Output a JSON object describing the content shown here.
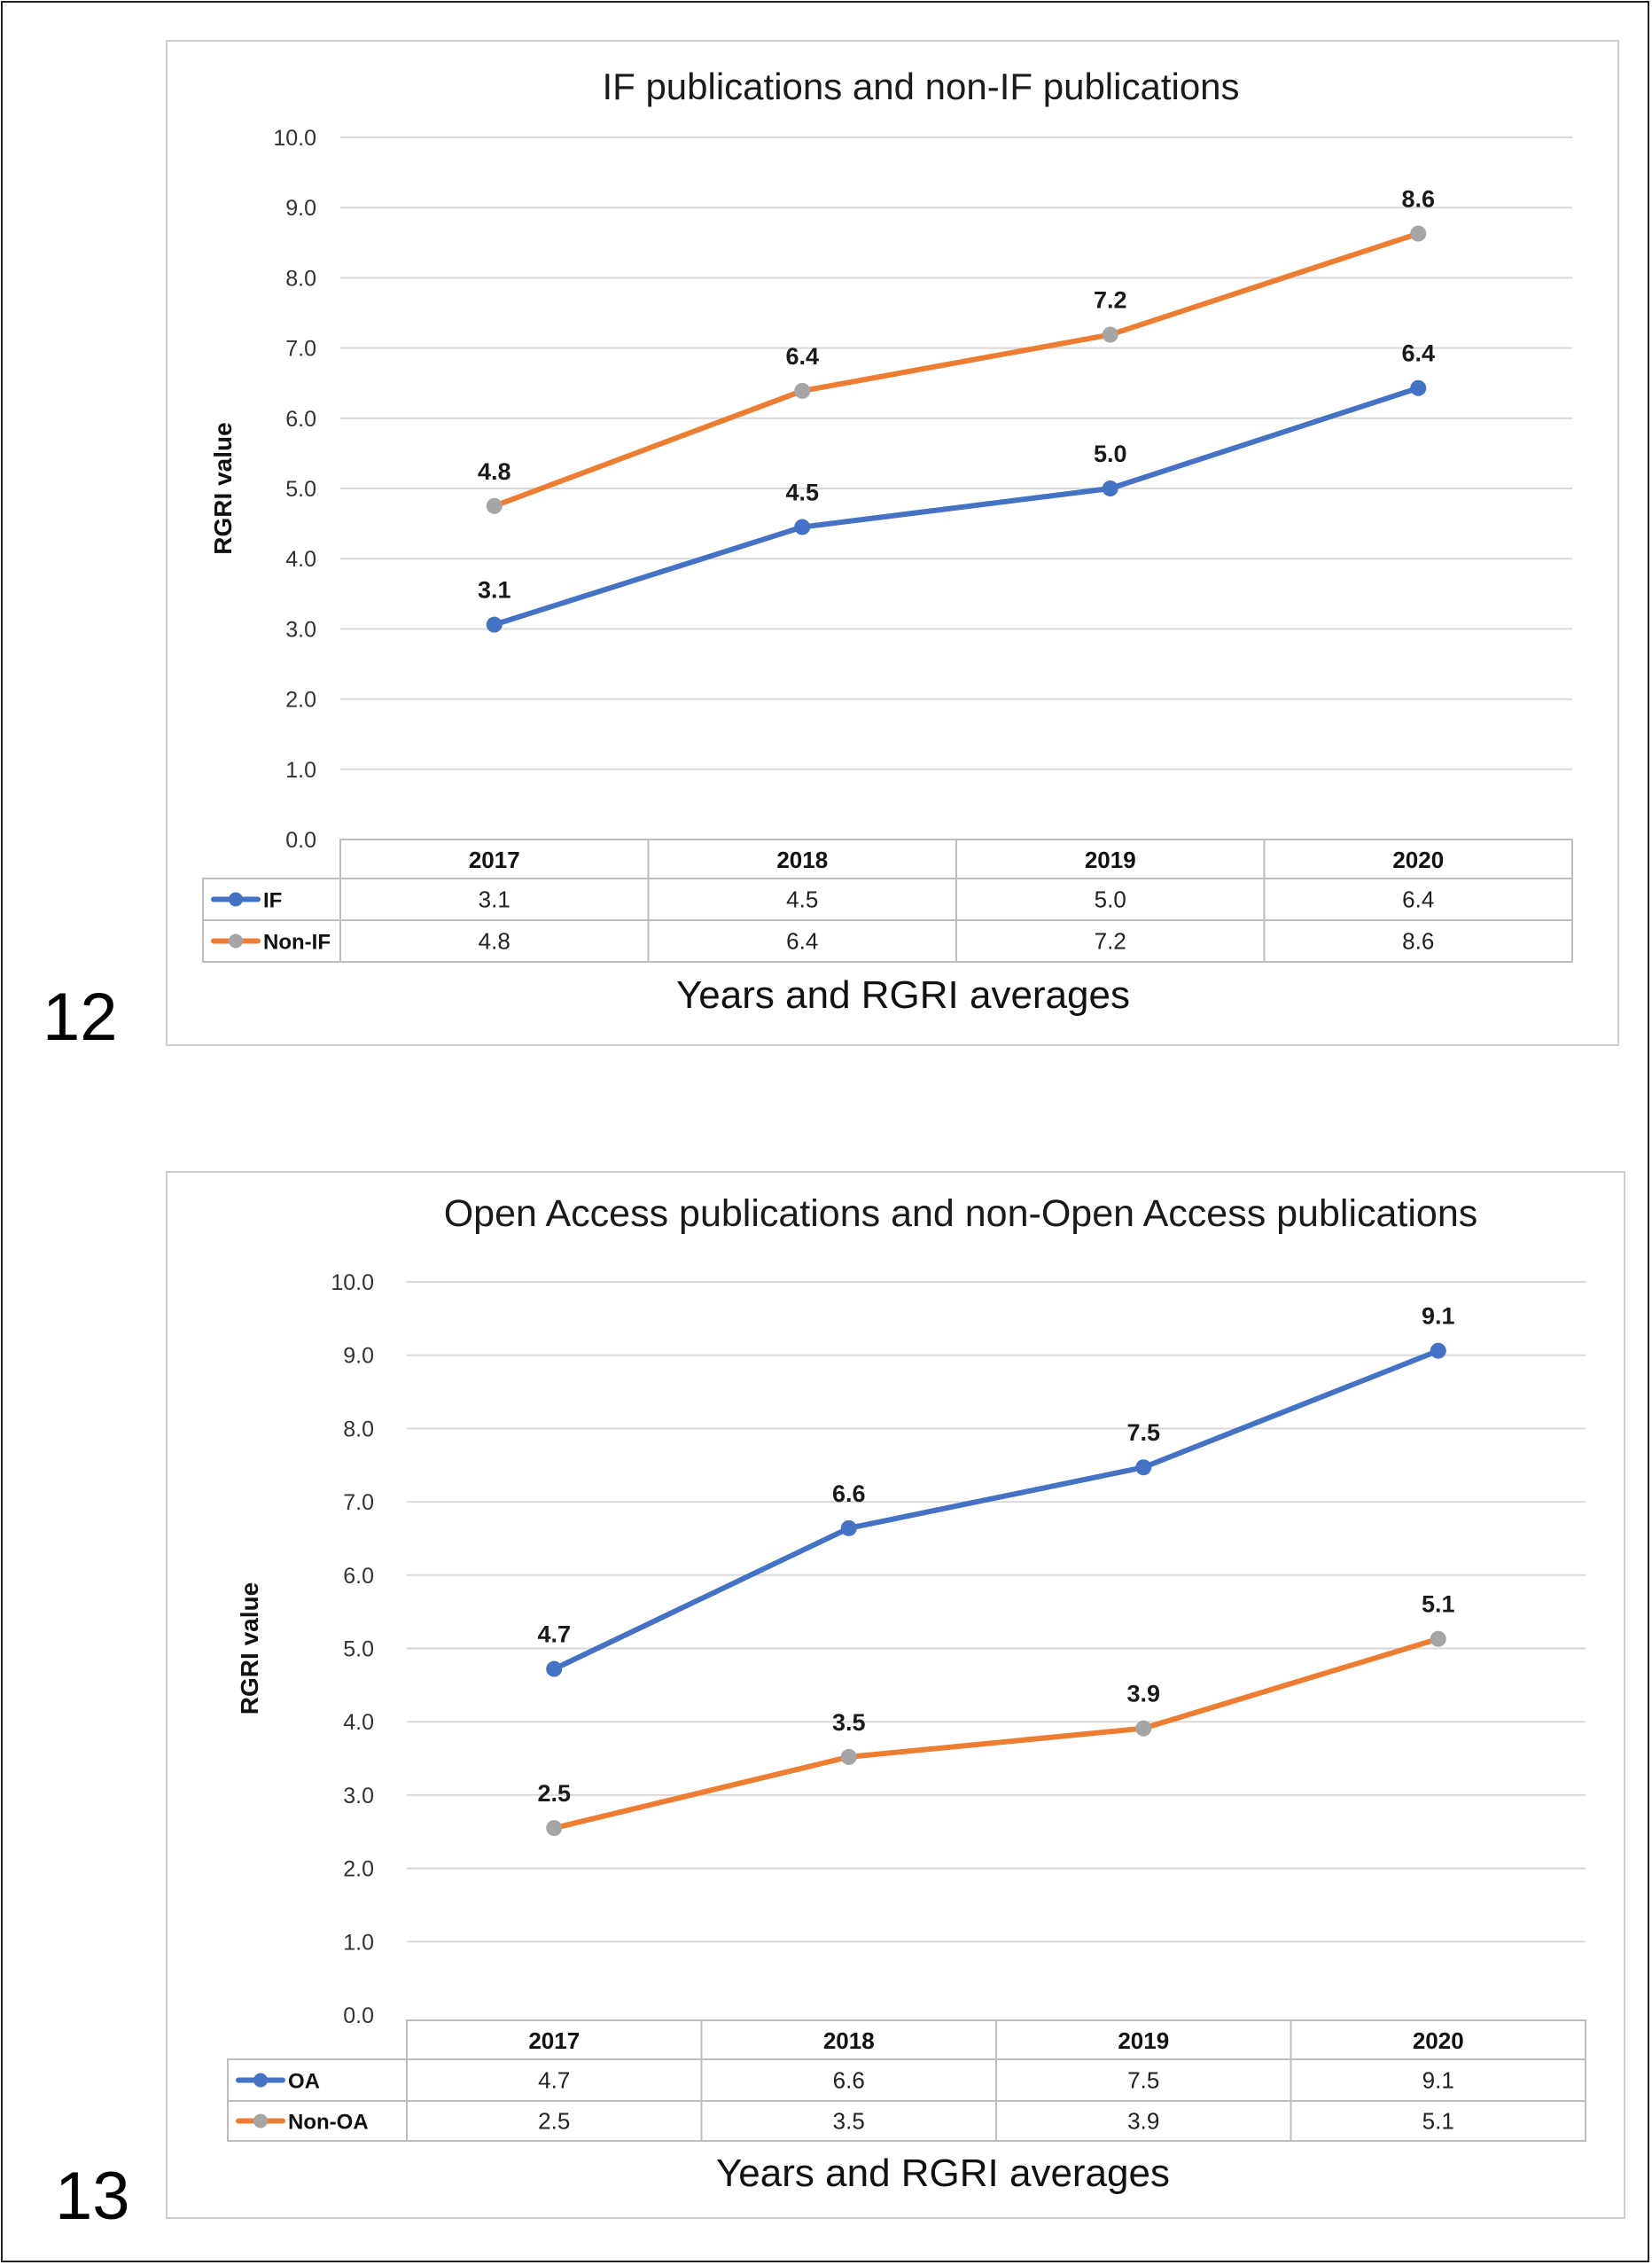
{
  "figures": [
    {
      "number": "12"
    },
    {
      "number": "13"
    }
  ],
  "chart_data": [
    {
      "type": "line",
      "title": "IF publications and non-IF publications",
      "ylabel": "RGRI value",
      "xlabel": "Years and RGRI averages",
      "categories": [
        "2017",
        "2018",
        "2019",
        "2020"
      ],
      "ylim": [
        0,
        10
      ],
      "ytick_labels": [
        "0.0",
        "1.0",
        "2.0",
        "3.0",
        "4.0",
        "5.0",
        "6.0",
        "7.0",
        "8.0",
        "9.0",
        "10.0"
      ],
      "grid": true,
      "legend": "data-table",
      "series": [
        {
          "name": "IF",
          "values": [
            3.06,
            4.45,
            5.0,
            6.43
          ],
          "labels": [
            "3.1",
            "4.5",
            "5.0",
            "6.4"
          ],
          "line_color": "#4472c4",
          "marker_color": "#4472c4"
        },
        {
          "name": "Non-IF",
          "values": [
            4.75,
            6.39,
            7.19,
            8.63
          ],
          "labels": [
            "4.8",
            "6.4",
            "7.2",
            "8.6"
          ],
          "line_color": "#ed7d31",
          "marker_color": "#a5a5a5"
        }
      ]
    },
    {
      "type": "line",
      "title": "Open Access publications and non-Open Access publications",
      "ylabel": "RGRI value",
      "xlabel": "Years and RGRI averages",
      "categories": [
        "2017",
        "2018",
        "2019",
        "2020"
      ],
      "ylim": [
        0,
        10
      ],
      "ytick_labels": [
        "0.0",
        "1.0",
        "2.0",
        "3.0",
        "4.0",
        "5.0",
        "6.0",
        "7.0",
        "8.0",
        "9.0",
        "10.0"
      ],
      "grid": true,
      "legend": "data-table",
      "series": [
        {
          "name": "OA",
          "values": [
            4.72,
            6.64,
            7.47,
            9.06
          ],
          "labels": [
            "4.7",
            "6.6",
            "7.5",
            "9.1"
          ],
          "line_color": "#4472c4",
          "marker_color": "#4472c4"
        },
        {
          "name": "Non-OA",
          "values": [
            2.55,
            3.52,
            3.91,
            5.13
          ],
          "labels": [
            "2.5",
            "3.5",
            "3.9",
            "5.1"
          ],
          "line_color": "#ed7d31",
          "marker_color": "#a5a5a5"
        }
      ]
    }
  ]
}
